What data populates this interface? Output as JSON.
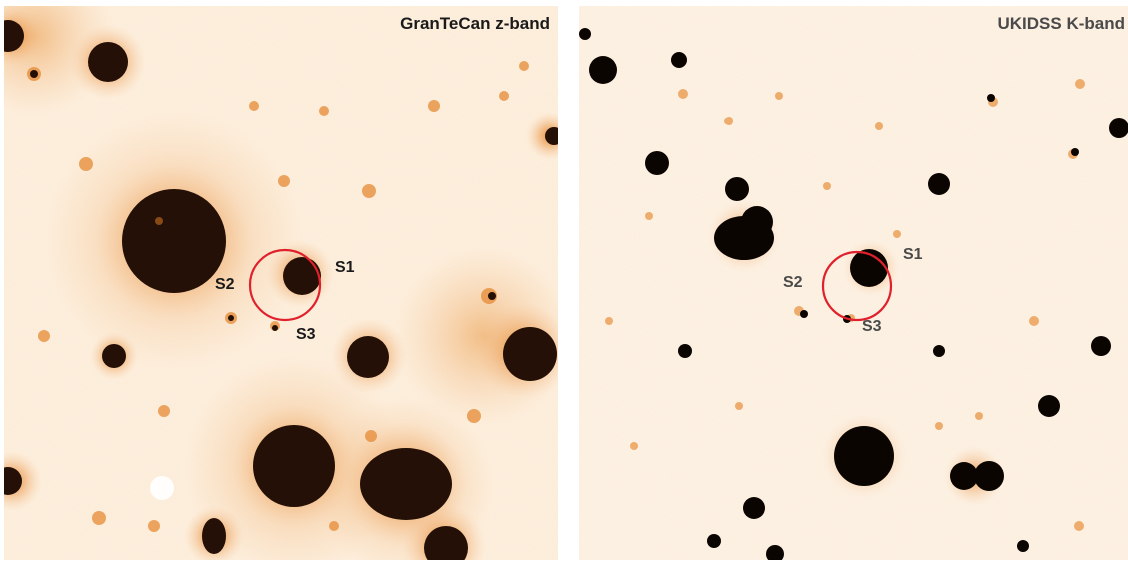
{
  "panels": [
    {
      "id": "z",
      "title": "GranTeCan z-band",
      "labels": {
        "s1": "S1",
        "s2": "S2",
        "s3": "S3"
      },
      "colors": {
        "background": "#fdf1e2",
        "halo": "#e58a34",
        "core": "#241006",
        "title": "#1a1a1a",
        "label": "#1a1a1a",
        "circle": "#e0202a"
      }
    },
    {
      "id": "k",
      "title": "UKIDSS K-band",
      "labels": {
        "s1": "S1",
        "s2": "S2",
        "s3": "S3"
      },
      "colors": {
        "background": "#fdf4ea",
        "halo": "#e8903c",
        "core": "#0b0502",
        "title": "#4a4a4a",
        "label": "#4a4a4a",
        "circle": "#e0202a"
      }
    }
  ]
}
